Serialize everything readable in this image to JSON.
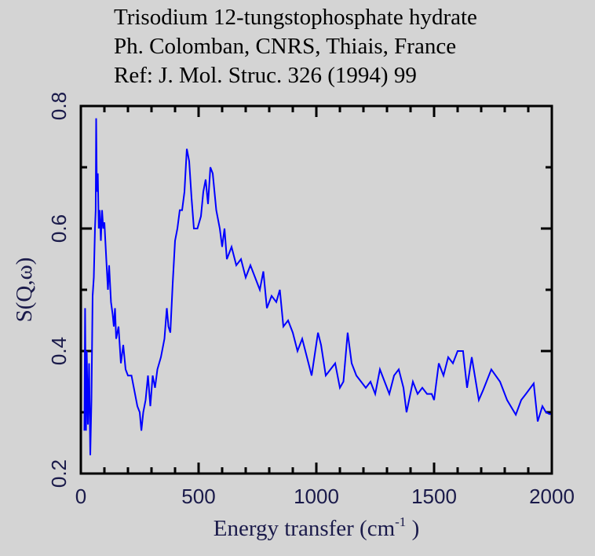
{
  "chart_data": {
    "type": "line",
    "title_lines": [
      "Trisodium 12-tungstophosphate hydrate",
      "Ph. Colomban, CNRS, Thiais, France",
      "Ref: J. Mol. Struc. 326 (1994) 99"
    ],
    "xlabel": {
      "main": "Energy transfer (cm",
      "sup": "-1",
      "tail": " )"
    },
    "ylabel": "S(Q,ω)",
    "xlim": [
      0,
      2000
    ],
    "ylim": [
      0.2,
      0.8
    ],
    "xticks": [
      0,
      500,
      1000,
      1500,
      2000
    ],
    "xtick_labels": [
      "0",
      "500",
      "1000",
      "1500",
      "2000"
    ],
    "yticks": [
      0.2,
      0.4,
      0.6,
      0.8
    ],
    "ytick_labels": [
      "0.2",
      "0.4",
      "0.6",
      "0.8"
    ],
    "x_minor_step": 100,
    "y_minor_step": 0.1,
    "grid": false,
    "line_color": "#0000ff",
    "series": [
      {
        "name": "S(Q,ω)",
        "x": [
          15,
          18,
          22,
          25,
          30,
          35,
          40,
          45,
          50,
          55,
          60,
          63,
          65,
          68,
          72,
          76,
          80,
          85,
          90,
          95,
          100,
          108,
          115,
          120,
          128,
          135,
          140,
          145,
          150,
          160,
          170,
          180,
          190,
          200,
          215,
          225,
          240,
          250,
          257,
          265,
          275,
          285,
          295,
          305,
          315,
          325,
          340,
          355,
          365,
          372,
          380,
          390,
          400,
          410,
          420,
          430,
          440,
          450,
          460,
          470,
          480,
          495,
          510,
          520,
          530,
          540,
          550,
          560,
          575,
          590,
          600,
          610,
          620,
          640,
          660,
          680,
          700,
          720,
          740,
          760,
          775,
          790,
          810,
          830,
          845,
          860,
          880,
          900,
          920,
          940,
          960,
          980,
          1007,
          1020,
          1040,
          1060,
          1080,
          1100,
          1115,
          1133,
          1150,
          1170,
          1190,
          1210,
          1230,
          1250,
          1270,
          1290,
          1310,
          1330,
          1350,
          1370,
          1383,
          1410,
          1430,
          1450,
          1470,
          1490,
          1500,
          1520,
          1540,
          1560,
          1580,
          1600,
          1623,
          1640,
          1660,
          1690,
          1707,
          1743,
          1780,
          1810,
          1847,
          1870,
          1890,
          1923,
          1940,
          1960,
          1975,
          1990,
          2000
        ],
        "y": [
          0.27,
          0.47,
          0.27,
          0.4,
          0.28,
          0.38,
          0.23,
          0.32,
          0.49,
          0.52,
          0.6,
          0.63,
          0.78,
          0.66,
          0.69,
          0.6,
          0.63,
          0.58,
          0.63,
          0.6,
          0.61,
          0.55,
          0.5,
          0.54,
          0.48,
          0.46,
          0.44,
          0.47,
          0.42,
          0.44,
          0.38,
          0.41,
          0.37,
          0.36,
          0.36,
          0.34,
          0.31,
          0.3,
          0.27,
          0.3,
          0.32,
          0.36,
          0.31,
          0.36,
          0.34,
          0.37,
          0.39,
          0.42,
          0.47,
          0.44,
          0.43,
          0.51,
          0.58,
          0.6,
          0.63,
          0.63,
          0.66,
          0.73,
          0.71,
          0.65,
          0.6,
          0.6,
          0.62,
          0.66,
          0.68,
          0.64,
          0.7,
          0.69,
          0.63,
          0.6,
          0.57,
          0.6,
          0.55,
          0.57,
          0.54,
          0.55,
          0.52,
          0.54,
          0.52,
          0.5,
          0.53,
          0.47,
          0.49,
          0.48,
          0.5,
          0.44,
          0.45,
          0.43,
          0.4,
          0.42,
          0.39,
          0.36,
          0.43,
          0.41,
          0.36,
          0.37,
          0.38,
          0.34,
          0.35,
          0.43,
          0.38,
          0.36,
          0.35,
          0.34,
          0.35,
          0.33,
          0.37,
          0.35,
          0.33,
          0.36,
          0.37,
          0.34,
          0.3,
          0.35,
          0.33,
          0.34,
          0.33,
          0.33,
          0.32,
          0.38,
          0.36,
          0.39,
          0.38,
          0.4,
          0.4,
          0.34,
          0.39,
          0.32,
          0.335,
          0.37,
          0.35,
          0.32,
          0.296,
          0.32,
          0.33,
          0.347,
          0.285,
          0.31,
          0.3,
          0.297,
          0.297
        ]
      }
    ]
  }
}
